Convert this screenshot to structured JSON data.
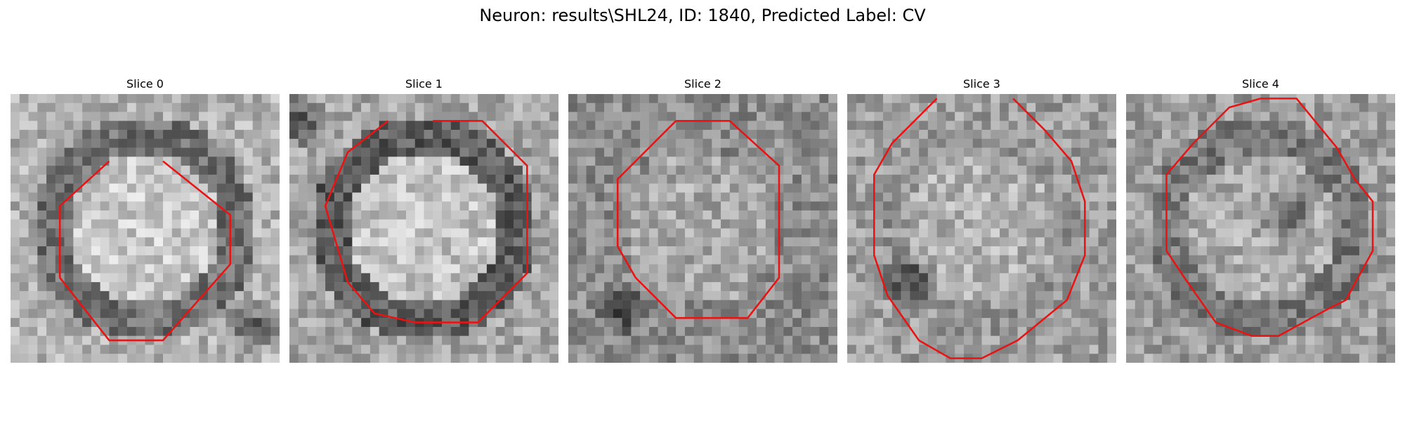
{
  "figure": {
    "title": "Neuron: results\\SHL24, ID: 1840, Predicted Label: CV",
    "outline_color": "#e81414"
  },
  "slices": [
    {
      "title": "Slice 0",
      "outline": [
        [
          17,
          7.5
        ],
        [
          24.5,
          13.5
        ],
        [
          24.5,
          19
        ],
        [
          17,
          27.5
        ],
        [
          11,
          27.5
        ],
        [
          5.5,
          20.5
        ],
        [
          5.5,
          12.5
        ],
        [
          11,
          7.5
        ]
      ],
      "tone": {
        "center": 200,
        "ring": 112,
        "background": 178,
        "dark_spot_x": 27,
        "dark_spot_y": 26
      }
    },
    {
      "title": "Slice 1",
      "outline": [
        [
          16,
          3
        ],
        [
          21.5,
          3
        ],
        [
          26.5,
          8
        ],
        [
          26.5,
          20
        ],
        [
          21,
          25.5
        ],
        [
          14,
          25.5
        ],
        [
          9.5,
          24.5
        ],
        [
          6.5,
          21
        ],
        [
          4,
          12.5
        ],
        [
          6.5,
          6.5
        ],
        [
          11,
          3
        ]
      ],
      "tone": {
        "center": 195,
        "ring": 92,
        "background": 165,
        "dark_spot_x": 1,
        "dark_spot_y": 3
      }
    },
    {
      "title": "Slice 2",
      "outline": [
        [
          12,
          3
        ],
        [
          18,
          3
        ],
        [
          23.5,
          8
        ],
        [
          23.5,
          20.5
        ],
        [
          20,
          25
        ],
        [
          12,
          25
        ],
        [
          7.5,
          20.5
        ],
        [
          5.5,
          17
        ],
        [
          5.5,
          9.5
        ],
        [
          8.5,
          6.5
        ],
        [
          12,
          3
        ]
      ],
      "tone": {
        "center": 168,
        "ring": 140,
        "background": 140,
        "dark_spot_x": 6,
        "dark_spot_y": 24
      }
    },
    {
      "title": "Slice 3",
      "outline": [
        [
          10,
          0.5
        ],
        [
          5,
          5.5
        ],
        [
          3,
          9
        ],
        [
          3,
          18
        ],
        [
          4.5,
          22.5
        ],
        [
          8,
          27.5
        ],
        [
          11.5,
          29.5
        ],
        [
          15,
          29.5
        ],
        [
          19,
          27.5
        ],
        [
          24.5,
          23
        ],
        [
          26.5,
          18
        ],
        [
          26.5,
          12
        ],
        [
          25,
          7.5
        ],
        [
          22,
          4
        ],
        [
          18.5,
          0.5
        ]
      ],
      "tone": {
        "center": 178,
        "ring": 150,
        "background": 158,
        "dark_spot_x": 7,
        "dark_spot_y": 21
      }
    },
    {
      "title": "Slice 4",
      "outline": [
        [
          15,
          0.5
        ],
        [
          19,
          0.5
        ],
        [
          23.5,
          6
        ],
        [
          25.5,
          9.5
        ],
        [
          27.5,
          12
        ],
        [
          27.5,
          17.5
        ],
        [
          24.5,
          23
        ],
        [
          22.5,
          24
        ],
        [
          17,
          27
        ],
        [
          14,
          27
        ],
        [
          10,
          25.5
        ],
        [
          6.5,
          20.5
        ],
        [
          4.5,
          17.5
        ],
        [
          4.5,
          9
        ],
        [
          7.5,
          5.5
        ],
        [
          11.5,
          1.5
        ],
        [
          15,
          0.5
        ]
      ],
      "tone": {
        "center": 172,
        "ring": 122,
        "background": 158,
        "dark_spot_x": 18,
        "dark_spot_y": 13
      }
    }
  ]
}
